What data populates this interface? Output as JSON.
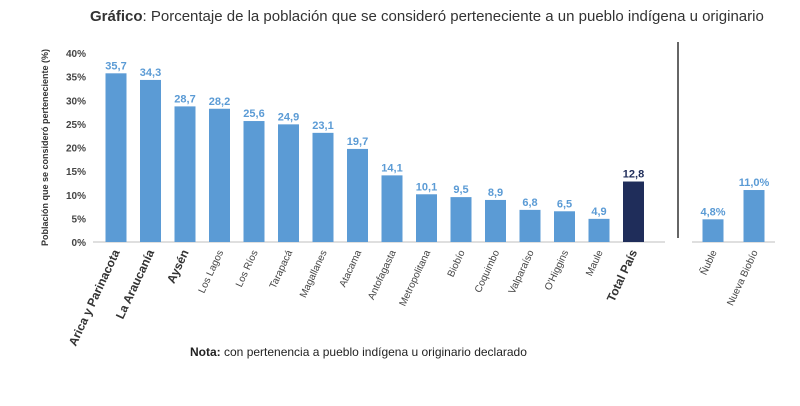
{
  "title": {
    "prefix": "Gráfico",
    "text": ": Porcentaje de la población que se consideró perteneciente a un pueblo indígena u originario"
  },
  "note": {
    "prefix": "Nota:",
    "text": " con pertenencia a pueblo indígena u originario declarado"
  },
  "colors": {
    "bar": "#5b9bd5",
    "total": "#1f2d5a",
    "label": "#5b9bd5",
    "total_label": "#1f2d5a"
  },
  "chart_data": [
    {
      "type": "bar",
      "ylabel": "Población que se consideró perteneciente (%)",
      "ylim": [
        0,
        40
      ],
      "yticks": [
        "0%",
        "5%",
        "10%",
        "15%",
        "20%",
        "25%",
        "30%",
        "35%",
        "40%"
      ],
      "categories": [
        "Arica y Parinacota",
        "La Araucanía",
        "Aysén",
        "Los Lagos",
        "Los Ríos",
        "Tarapacá",
        "Magallanes",
        "Atacama",
        "Antofagasta",
        "Metropolitana",
        "Biobío",
        "Coquimbo",
        "Valparaíso",
        "O'Higgins",
        "Maule",
        "Total País"
      ],
      "bold_categories": [
        "Arica y Parinacota",
        "La Araucanía",
        "Aysén",
        "Total País"
      ],
      "values": [
        35.7,
        34.3,
        28.7,
        28.2,
        25.6,
        24.9,
        23.1,
        19.7,
        14.1,
        10.1,
        9.5,
        8.9,
        6.8,
        6.5,
        4.9,
        12.8
      ],
      "value_labels": [
        "35,7",
        "34,3",
        "28,7",
        "28,2",
        "25,6",
        "24,9",
        "23,1",
        "19,7",
        "14,1",
        "10,1",
        "9,5",
        "8,9",
        "6,8",
        "6,5",
        "4,9",
        "12,8"
      ],
      "highlight": "Total País"
    },
    {
      "type": "bar",
      "ylim": [
        0,
        40
      ],
      "categories": [
        "Ñuble",
        "Nueva Biobío"
      ],
      "values": [
        4.8,
        11.0
      ],
      "value_labels": [
        "4,8%",
        "11,0%"
      ]
    }
  ]
}
